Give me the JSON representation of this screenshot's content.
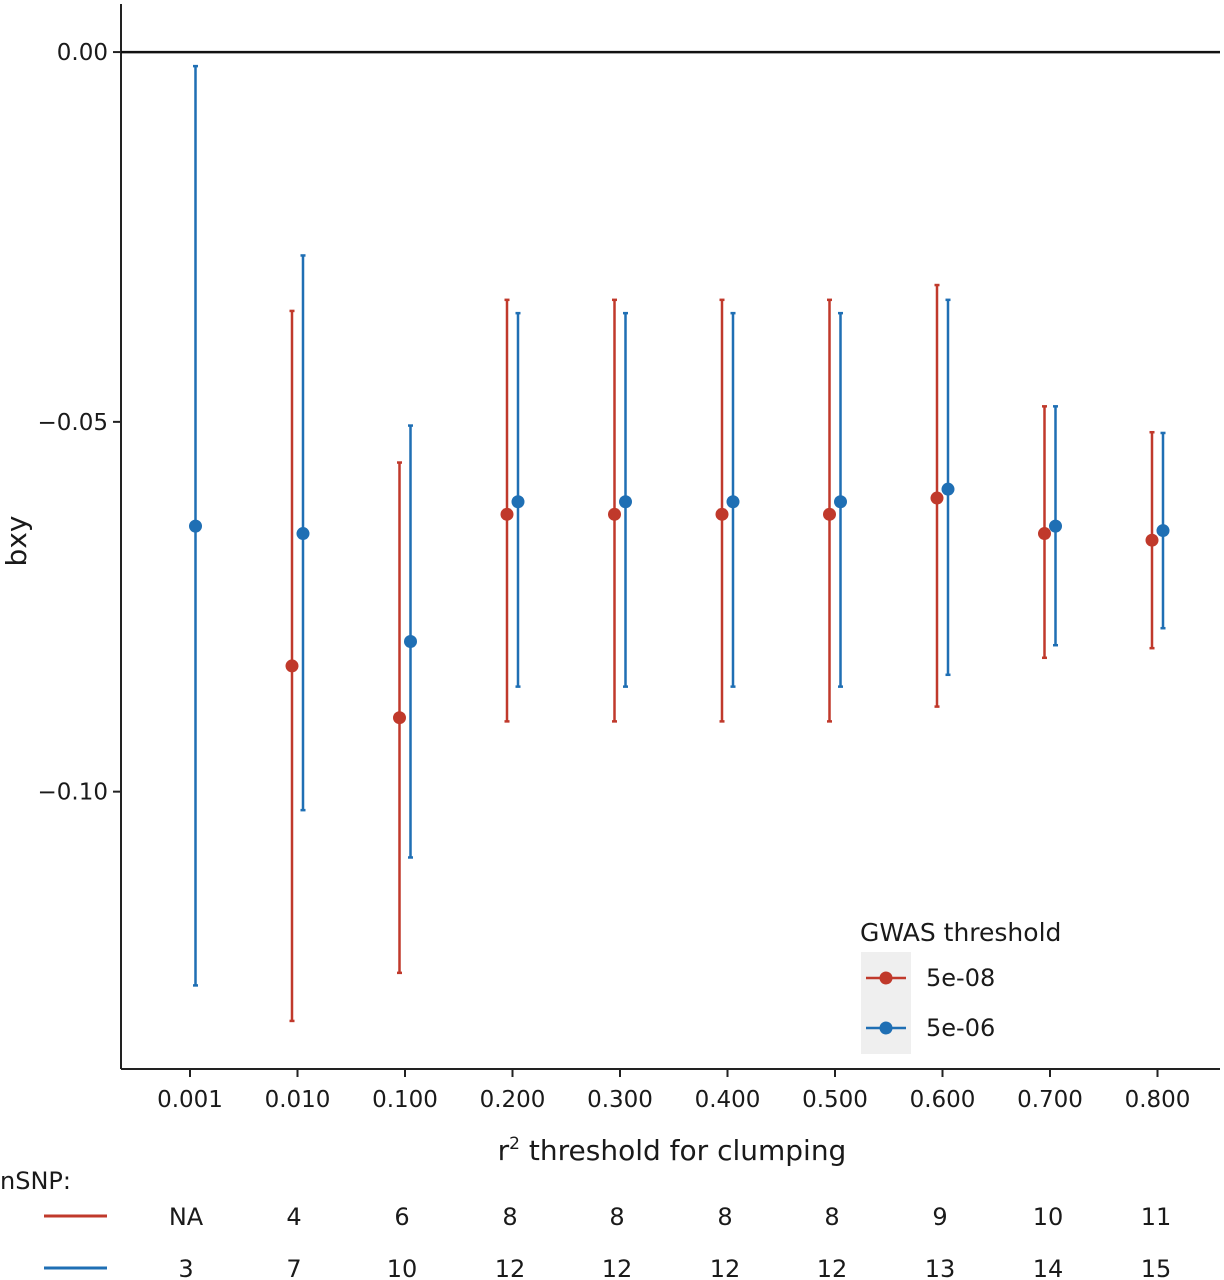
{
  "chart_data": {
    "type": "scatter",
    "subtype": "point-errorbar",
    "xlabel_prefix": "r",
    "xlabel_superscript": "2",
    "xlabel_suffix": " threshold for clumping",
    "ylabel": "bxy",
    "categories": [
      "0.001",
      "0.010",
      "0.100",
      "0.200",
      "0.300",
      "0.400",
      "0.500",
      "0.600",
      "0.700",
      "0.800"
    ],
    "yticks": [
      "0.00",
      "−0.05",
      "−0.10"
    ],
    "ytick_values": [
      0.0,
      -0.05,
      -0.1
    ],
    "ylim": [
      -0.1375,
      0.0065
    ],
    "reference_line": 0.0,
    "legend": {
      "title": "GWAS threshold",
      "position": "bottom-right"
    },
    "series": [
      {
        "name": "5e-08",
        "color": "#c0392b",
        "values": [
          null,
          -0.083,
          -0.09,
          -0.0625,
          -0.0625,
          -0.0625,
          -0.0625,
          -0.0603,
          -0.0651,
          -0.066
        ],
        "lower": [
          null,
          -0.131,
          -0.1245,
          -0.0905,
          -0.0905,
          -0.0905,
          -0.0905,
          -0.0885,
          -0.0819,
          -0.0806
        ],
        "upper": [
          null,
          -0.035,
          -0.0555,
          -0.0335,
          -0.0335,
          -0.0335,
          -0.0335,
          -0.0315,
          -0.0479,
          -0.0514
        ]
      },
      {
        "name": "5e-06",
        "color": "#1f6fb4",
        "values": [
          -0.0641,
          -0.0651,
          -0.0797,
          -0.0608,
          -0.0608,
          -0.0608,
          -0.0608,
          -0.0591,
          -0.0641,
          -0.0647
        ],
        "lower": [
          -0.1262,
          -0.1025,
          -0.1089,
          -0.0858,
          -0.0858,
          -0.0858,
          -0.0858,
          -0.0842,
          -0.0802,
          -0.0779
        ],
        "upper": [
          -0.0019,
          -0.0275,
          -0.0505,
          -0.0353,
          -0.0353,
          -0.0353,
          -0.0353,
          -0.0335,
          -0.0479,
          -0.0515
        ]
      }
    ],
    "nsnp": {
      "label": "nSNP:",
      "rows": [
        {
          "series": "5e-08",
          "values": [
            "NA",
            "4",
            "6",
            "8",
            "8",
            "8",
            "8",
            "9",
            "10",
            "11"
          ]
        },
        {
          "series": "5e-06",
          "values": [
            "3",
            "7",
            "10",
            "12",
            "12",
            "12",
            "12",
            "13",
            "14",
            "15"
          ]
        }
      ]
    }
  }
}
